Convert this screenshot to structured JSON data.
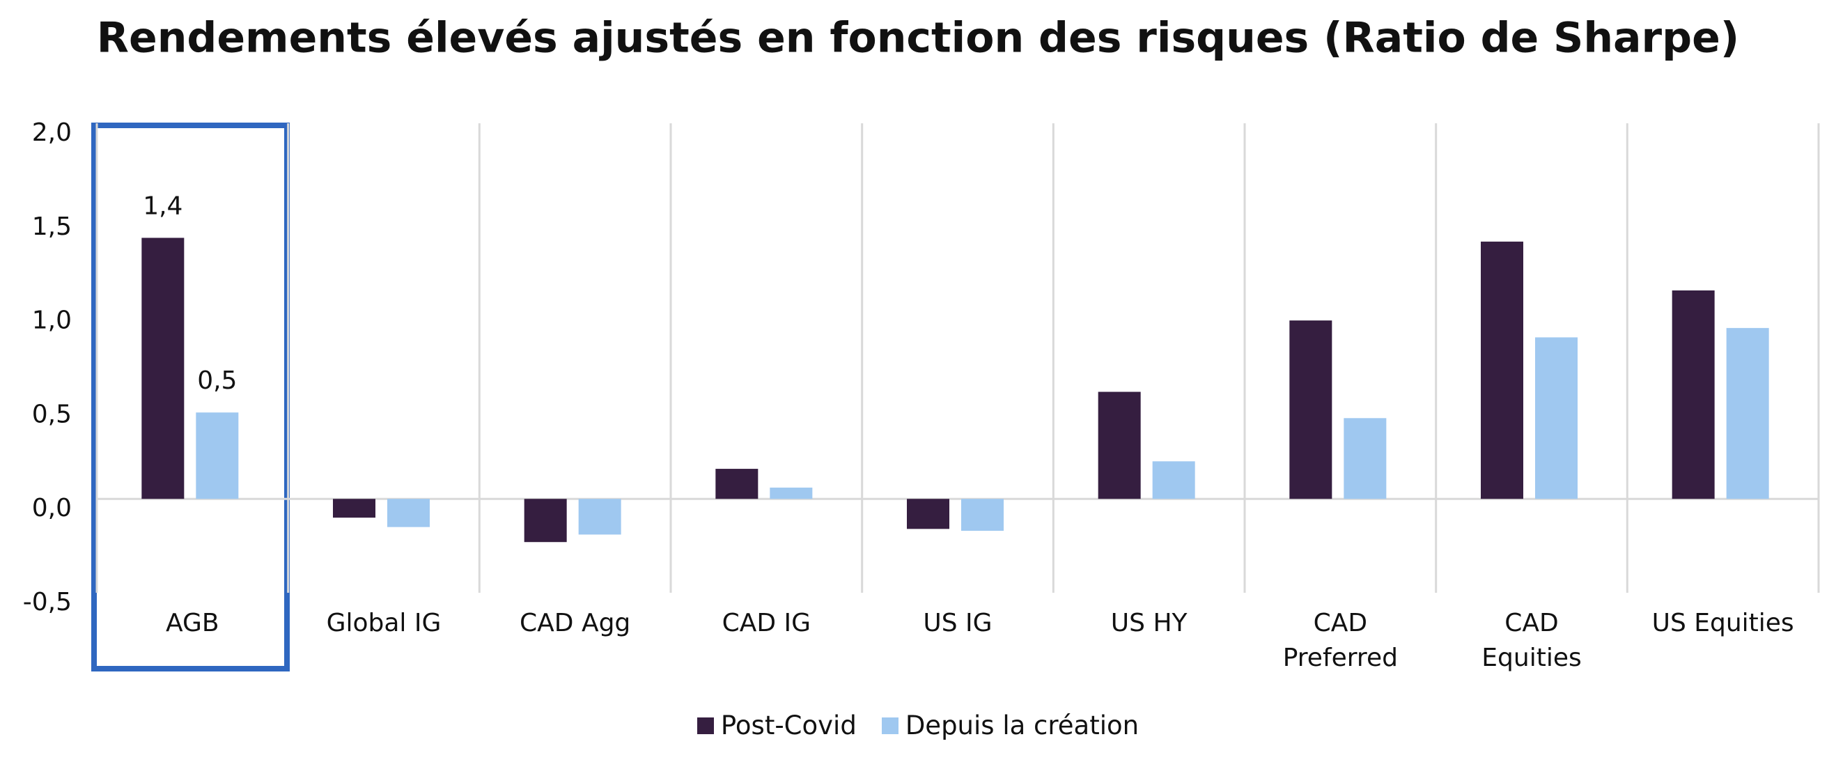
{
  "chart_data": {
    "type": "bar",
    "title": "Rendements élevés ajustés en fonction des risques (Ratio de Sharpe)",
    "categories": [
      "AGB",
      "Global IG",
      "CAD Agg",
      "CAD IG",
      "US IG",
      "US HY",
      "CAD Preferred",
      "CAD Equities",
      "US Equities"
    ],
    "series": [
      {
        "name": "Post-Covid",
        "color": "#351e40",
        "values": [
          1.39,
          -0.1,
          -0.23,
          0.16,
          -0.16,
          0.57,
          0.95,
          1.37,
          1.11
        ],
        "value_labels": [
          "1,4",
          null,
          null,
          null,
          null,
          null,
          null,
          null,
          null
        ]
      },
      {
        "name": "Depuis la création",
        "color": "#9fc8f0",
        "values": [
          0.46,
          -0.15,
          -0.19,
          0.06,
          -0.17,
          0.2,
          0.43,
          0.86,
          0.91
        ],
        "value_labels": [
          "0,5",
          null,
          null,
          null,
          null,
          null,
          null,
          null,
          null
        ]
      }
    ],
    "ylim": [
      -0.5,
      2.0
    ],
    "yticks": [
      {
        "value": -0.5,
        "label": "-0,5"
      },
      {
        "value": 0,
        "label": "0,0"
      },
      {
        "value": 0.5,
        "label": "0,5"
      },
      {
        "value": 1.0,
        "label": "1,0"
      },
      {
        "value": 1.5,
        "label": "1,5"
      },
      {
        "value": 2.0,
        "label": "2,0"
      }
    ],
    "legend": "bottom"
  }
}
